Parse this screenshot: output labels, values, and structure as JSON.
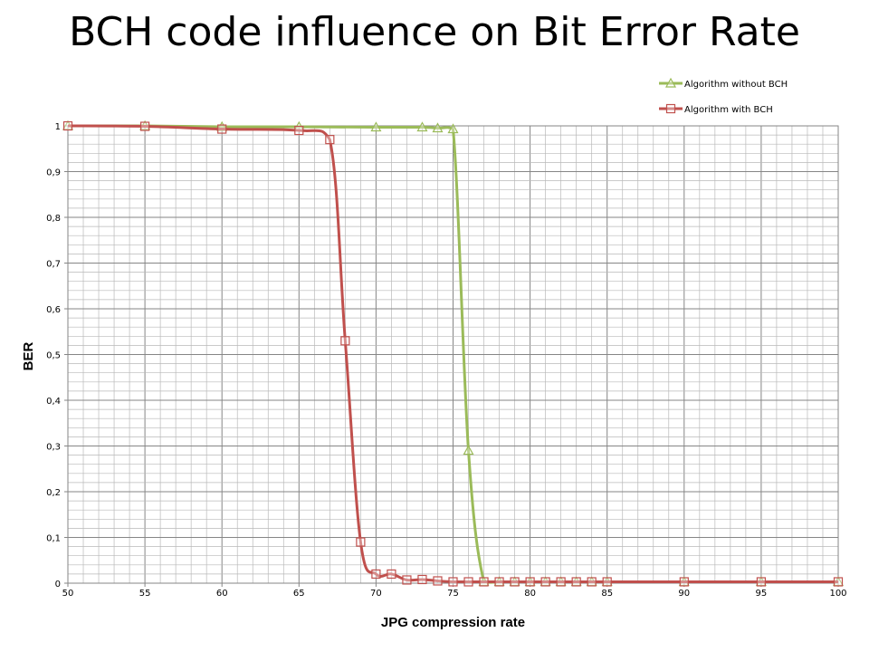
{
  "chart_data": {
    "type": "line",
    "title": "BCH code influence on Bit Error Rate",
    "xlabel": "JPG compression rate",
    "ylabel": "BER",
    "xlim": [
      50,
      100
    ],
    "ylim": [
      0,
      1
    ],
    "x_ticks": [
      50,
      55,
      60,
      65,
      70,
      75,
      80,
      85,
      90,
      95,
      100
    ],
    "y_ticks": [
      "0",
      "0,1",
      "0,2",
      "0,3",
      "0,4",
      "0,5",
      "0,6",
      "0,7",
      "0,8",
      "0,9",
      "1"
    ],
    "grid": true,
    "legend_position": "top-right",
    "series": [
      {
        "name": "Algorithm without BCH",
        "color": "#9bbb59",
        "marker": "triangle",
        "x": [
          50,
          55,
          60,
          65,
          70,
          73,
          74,
          75,
          76,
          77,
          78,
          79,
          80,
          81,
          82,
          83,
          84,
          85,
          90,
          95,
          100
        ],
        "y": [
          1.0,
          1.0,
          0.998,
          0.998,
          0.997,
          0.997,
          0.995,
          0.993,
          0.29,
          0.003,
          0.003,
          0.003,
          0.003,
          0.003,
          0.003,
          0.003,
          0.003,
          0.003,
          0.003,
          0.003,
          0.003
        ]
      },
      {
        "name": "Algorithm with BCH",
        "color": "#c0504d",
        "marker": "square",
        "x": [
          50,
          55,
          60,
          65,
          67,
          68,
          69,
          70,
          71,
          72,
          73,
          74,
          75,
          76,
          77,
          78,
          79,
          80,
          81,
          82,
          83,
          84,
          85,
          90,
          95,
          100
        ],
        "y": [
          1.0,
          0.999,
          0.993,
          0.99,
          0.97,
          0.53,
          0.09,
          0.02,
          0.02,
          0.007,
          0.008,
          0.005,
          0.003,
          0.003,
          0.003,
          0.003,
          0.003,
          0.003,
          0.003,
          0.003,
          0.003,
          0.003,
          0.003,
          0.003,
          0.003,
          0.003
        ]
      }
    ]
  }
}
